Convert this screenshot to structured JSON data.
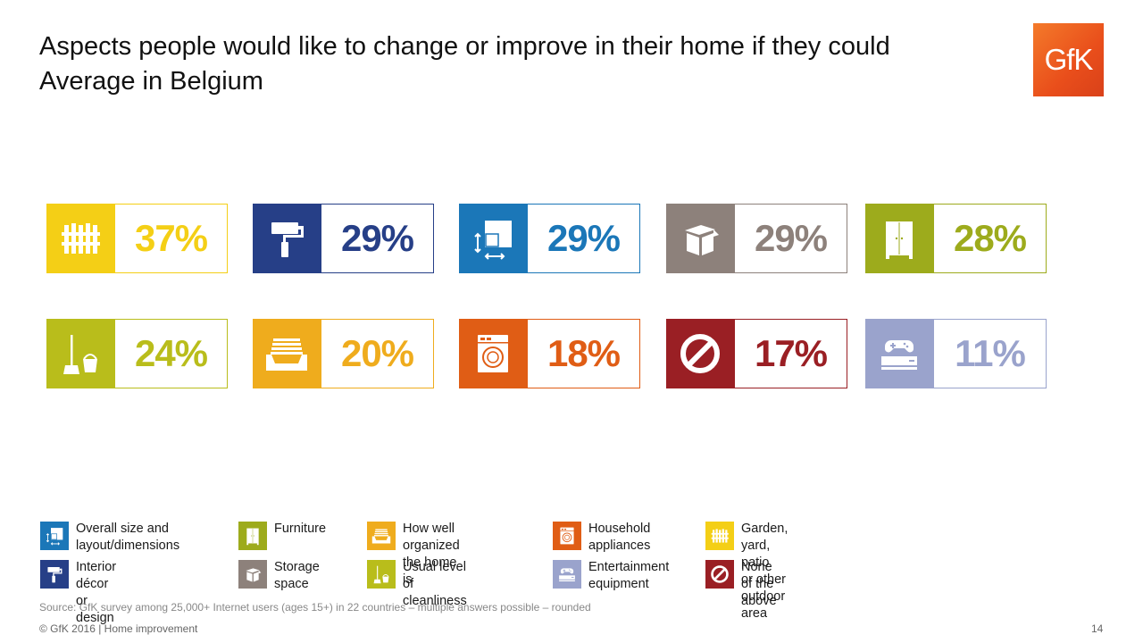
{
  "title": {
    "line1": "Aspects people would like to change or improve in their home if they could",
    "line2": "Average in Belgium"
  },
  "logo": {
    "text": "GfK"
  },
  "colors": {
    "garden": "#f4cf16",
    "interior": "#263f87",
    "size": "#1b77b8",
    "storage": "#8d817b",
    "furniture": "#9dab1c",
    "cleanliness": "#b9bd1b",
    "organized": "#efac1d",
    "appliances": "#e05d15",
    "none": "#9a1f24",
    "entertainment": "#9aa3cc"
  },
  "chart_data": {
    "type": "table",
    "categories": [
      "Garden, yard, patio or other outdoor area",
      "Interior décor or design",
      "Overall size and layout/dimensions",
      "Storage space",
      "Furniture",
      "Usual level of cleanliness",
      "How well organized the home is",
      "Household appliances",
      "None of the above",
      "Entertainment equipment"
    ],
    "values": [
      37,
      29,
      29,
      29,
      28,
      24,
      20,
      18,
      17,
      11
    ],
    "labels": [
      "37%",
      "29%",
      "29%",
      "29%",
      "28%",
      "24%",
      "20%",
      "18%",
      "17%",
      "11%"
    ]
  },
  "tiles": [
    {
      "key": "garden",
      "icon": "fence-icon",
      "pct": "37%"
    },
    {
      "key": "interior",
      "icon": "paint-roller-icon",
      "pct": "29%"
    },
    {
      "key": "size",
      "icon": "dimensions-icon",
      "pct": "29%"
    },
    {
      "key": "storage",
      "icon": "box-icon",
      "pct": "29%"
    },
    {
      "key": "furniture",
      "icon": "wardrobe-icon",
      "pct": "28%"
    },
    {
      "key": "cleanliness",
      "icon": "mop-bucket-icon",
      "pct": "24%"
    },
    {
      "key": "organized",
      "icon": "drawer-icon",
      "pct": "20%"
    },
    {
      "key": "appliances",
      "icon": "washing-machine-icon",
      "pct": "18%"
    },
    {
      "key": "none",
      "icon": "prohibited-icon",
      "pct": "17%"
    },
    {
      "key": "entertainment",
      "icon": "game-console-icon",
      "pct": "11%"
    }
  ],
  "legend": {
    "size": "Overall size and\nlayout/dimensions",
    "furniture": "Furniture",
    "organized": "How well organized\nthe home is",
    "appliances": "Household\nappliances",
    "garden": "Garden, yard, patio\nor other outdoor area",
    "interior": "Interior décor\nor design",
    "storage": "Storage\nspace",
    "cleanliness": "Usual level\nof cleanliness",
    "entertainment": "Entertainment\nequipment",
    "none": "None of the\nabove"
  },
  "source": "Source: GfK survey among 25,000+ Internet users (ages 15+) in 22 countries – multiple answers possible – rounded",
  "footer": "© GfK 2016 | Home improvement",
  "page_number": "14"
}
